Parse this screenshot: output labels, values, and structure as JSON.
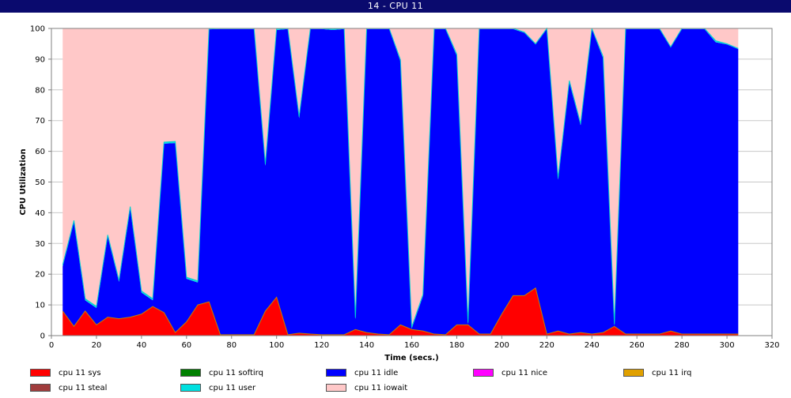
{
  "window": {
    "title": "14 - CPU 11"
  },
  "chart_data": {
    "type": "area",
    "stacked": true,
    "xlabel": "Time (secs.)",
    "ylabel": "CPU Utilization",
    "xlim": [
      0,
      320
    ],
    "ylim": [
      0,
      100
    ],
    "x_ticks": [
      0,
      20,
      40,
      60,
      80,
      100,
      120,
      140,
      160,
      180,
      200,
      220,
      240,
      260,
      280,
      300,
      320
    ],
    "y_ticks": [
      0,
      10,
      20,
      30,
      40,
      50,
      60,
      70,
      80,
      90,
      100
    ],
    "grid": true,
    "legend_position": "bottom",
    "x": [
      5,
      10,
      15,
      20,
      25,
      30,
      35,
      40,
      45,
      50,
      55,
      60,
      65,
      70,
      75,
      80,
      85,
      90,
      95,
      100,
      105,
      110,
      115,
      120,
      125,
      130,
      135,
      140,
      145,
      150,
      155,
      160,
      165,
      170,
      175,
      180,
      185,
      190,
      195,
      200,
      205,
      210,
      215,
      220,
      225,
      230,
      235,
      240,
      245,
      250,
      255,
      260,
      265,
      270,
      275,
      280,
      285,
      290,
      295,
      300,
      305
    ],
    "series": [
      {
        "name": "cpu 11 sys",
        "color": "#ff0000",
        "values": [
          8,
          3,
          8,
          3.5,
          6,
          5.5,
          6,
          7,
          9.5,
          7.5,
          1,
          4.5,
          10,
          11,
          0.3,
          0.3,
          0.3,
          0.3,
          8,
          12.5,
          0.3,
          0.8,
          0.5,
          0.3,
          0.3,
          0.3,
          2,
          1,
          0.5,
          0.3,
          3.5,
          2,
          1.5,
          0.5,
          0.3,
          3.5,
          3.5,
          0.5,
          0.5,
          7,
          13,
          13,
          15.5,
          0.5,
          1.5,
          0.5,
          1,
          0.5,
          1,
          3,
          0.5,
          0.5,
          0.5,
          0.5,
          1.5,
          0.5,
          0.5,
          0.5,
          0.5,
          0.5,
          0.5
        ]
      },
      {
        "name": "cpu 11 softirq",
        "color": "#008000",
        "values": [
          0,
          0,
          0,
          0,
          0,
          0,
          0,
          0,
          0,
          0,
          0,
          0,
          0,
          0,
          0,
          0,
          0,
          0,
          0,
          0,
          0,
          0,
          0,
          0,
          0,
          0,
          0,
          0,
          0,
          0,
          0,
          0,
          0,
          0,
          0,
          0,
          0,
          0,
          0,
          0,
          0,
          0,
          0,
          0,
          0,
          0,
          0,
          0,
          0,
          0,
          0,
          0,
          0,
          0,
          0,
          0,
          0,
          0,
          0,
          0,
          0
        ]
      },
      {
        "name": "cpu 11 idle",
        "color": "#0000ff",
        "values": [
          14.5,
          34,
          3.5,
          5.5,
          26.3,
          12,
          35.5,
          7,
          2,
          55,
          61.7,
          14,
          7.3,
          88.7,
          99.5,
          99.5,
          99.5,
          99.5,
          47.3,
          87,
          99.5,
          70,
          99.3,
          99.5,
          99.2,
          99.5,
          3.3,
          98.8,
          99.3,
          99.5,
          85.8,
          0.3,
          11.4,
          99.3,
          99.5,
          87.6,
          0.2,
          99.3,
          99.3,
          92.8,
          86.8,
          85.6,
          79.3,
          99.3,
          49.3,
          82,
          67.5,
          99.3,
          89.3,
          0.2,
          99.3,
          99.3,
          99.3,
          99.3,
          92.3,
          99.3,
          99.3,
          99.3,
          95,
          94.3,
          92.8
        ]
      },
      {
        "name": "cpu 11 nice",
        "color": "#ff00ff",
        "values": [
          0,
          0,
          0,
          0,
          0,
          0,
          0,
          0,
          0,
          0,
          0,
          0,
          0,
          0,
          0,
          0,
          0,
          0,
          0,
          0,
          0,
          0,
          0,
          0,
          0,
          0,
          0,
          0,
          0,
          0,
          0,
          0,
          0,
          0,
          0,
          0,
          0,
          0,
          0,
          0,
          0,
          0,
          0,
          0,
          0,
          0,
          0,
          0,
          0,
          0,
          0,
          0,
          0,
          0,
          0,
          0,
          0,
          0,
          0,
          0,
          0
        ]
      },
      {
        "name": "cpu 11 irq",
        "color": "#e0a000",
        "values": [
          0,
          0,
          0,
          0,
          0,
          0,
          0,
          0,
          0,
          0,
          0,
          0,
          0,
          0,
          0,
          0,
          0,
          0,
          0,
          0,
          0,
          0,
          0,
          0,
          0,
          0,
          0,
          0,
          0,
          0,
          0,
          0,
          0,
          0,
          0,
          0,
          0,
          0,
          0,
          0,
          0,
          0,
          0,
          0,
          0,
          0,
          0,
          0,
          0,
          0,
          0,
          0,
          0,
          0,
          0,
          0,
          0,
          0,
          0,
          0,
          0
        ]
      },
      {
        "name": "cpu 11 steal",
        "color": "#a03c3c",
        "values": [
          0,
          0,
          0,
          0,
          0,
          0,
          0,
          0,
          0,
          0,
          0,
          0,
          0,
          0,
          0,
          0,
          0,
          0,
          0,
          0,
          0,
          0,
          0,
          0,
          0,
          0,
          0,
          0,
          0,
          0,
          0,
          0,
          0,
          0,
          0,
          0,
          0,
          0,
          0,
          0,
          0,
          0,
          0,
          0,
          0,
          0,
          0,
          0,
          0,
          0,
          0,
          0,
          0,
          0,
          0,
          0,
          0,
          0,
          0,
          0,
          0
        ]
      },
      {
        "name": "cpu 11 user",
        "color": "#00e0e0",
        "values": [
          0.5,
          0.5,
          0.5,
          0.5,
          0.5,
          0.5,
          0.5,
          0.5,
          0.5,
          0.5,
          0.5,
          0.5,
          0.5,
          0.3,
          0.2,
          0.2,
          0.2,
          0.2,
          0.5,
          0.5,
          0.2,
          0.5,
          0.2,
          0.2,
          0.2,
          0.2,
          0.5,
          0.2,
          0.2,
          0.2,
          0.5,
          0.5,
          0.5,
          0.2,
          0.2,
          0.5,
          0.5,
          0.2,
          0.2,
          0.2,
          0.2,
          0.2,
          0.2,
          0.2,
          0.5,
          0.5,
          0.5,
          0.2,
          0.5,
          0.5,
          0.2,
          0.2,
          0.2,
          0.2,
          0.2,
          0.2,
          0.2,
          0.2,
          0.5,
          0.2,
          0.2
        ]
      },
      {
        "name": "cpu 11 iowait",
        "color": "#ffc8c8",
        "values": [
          77,
          62.5,
          88,
          90.5,
          67.2,
          82,
          58,
          85.5,
          88,
          37,
          36.8,
          81,
          82.2,
          0,
          0,
          0,
          0,
          0,
          44.2,
          0,
          0,
          28.7,
          0,
          0,
          0.3,
          0,
          94.2,
          0,
          0,
          0,
          10.2,
          97.2,
          86.6,
          0,
          0,
          8.4,
          95.8,
          0,
          0,
          0,
          0,
          1.2,
          5,
          0,
          48.7,
          17,
          31,
          0,
          9.2,
          96.3,
          0,
          0,
          0,
          0,
          6,
          0,
          0,
          0,
          4,
          5,
          6.5
        ]
      }
    ]
  },
  "legend": {
    "items": [
      {
        "label": "cpu 11 sys",
        "color": "#ff0000"
      },
      {
        "label": "cpu 11 softirq",
        "color": "#008000"
      },
      {
        "label": "cpu 11 idle",
        "color": "#0000ff"
      },
      {
        "label": "cpu 11 nice",
        "color": "#ff00ff"
      },
      {
        "label": "cpu 11 irq",
        "color": "#e0a000"
      },
      {
        "label": "cpu 11 steal",
        "color": "#a03c3c"
      },
      {
        "label": "cpu 11 user",
        "color": "#00e0e0"
      },
      {
        "label": "cpu 11 iowait",
        "color": "#ffc8c8"
      }
    ]
  }
}
